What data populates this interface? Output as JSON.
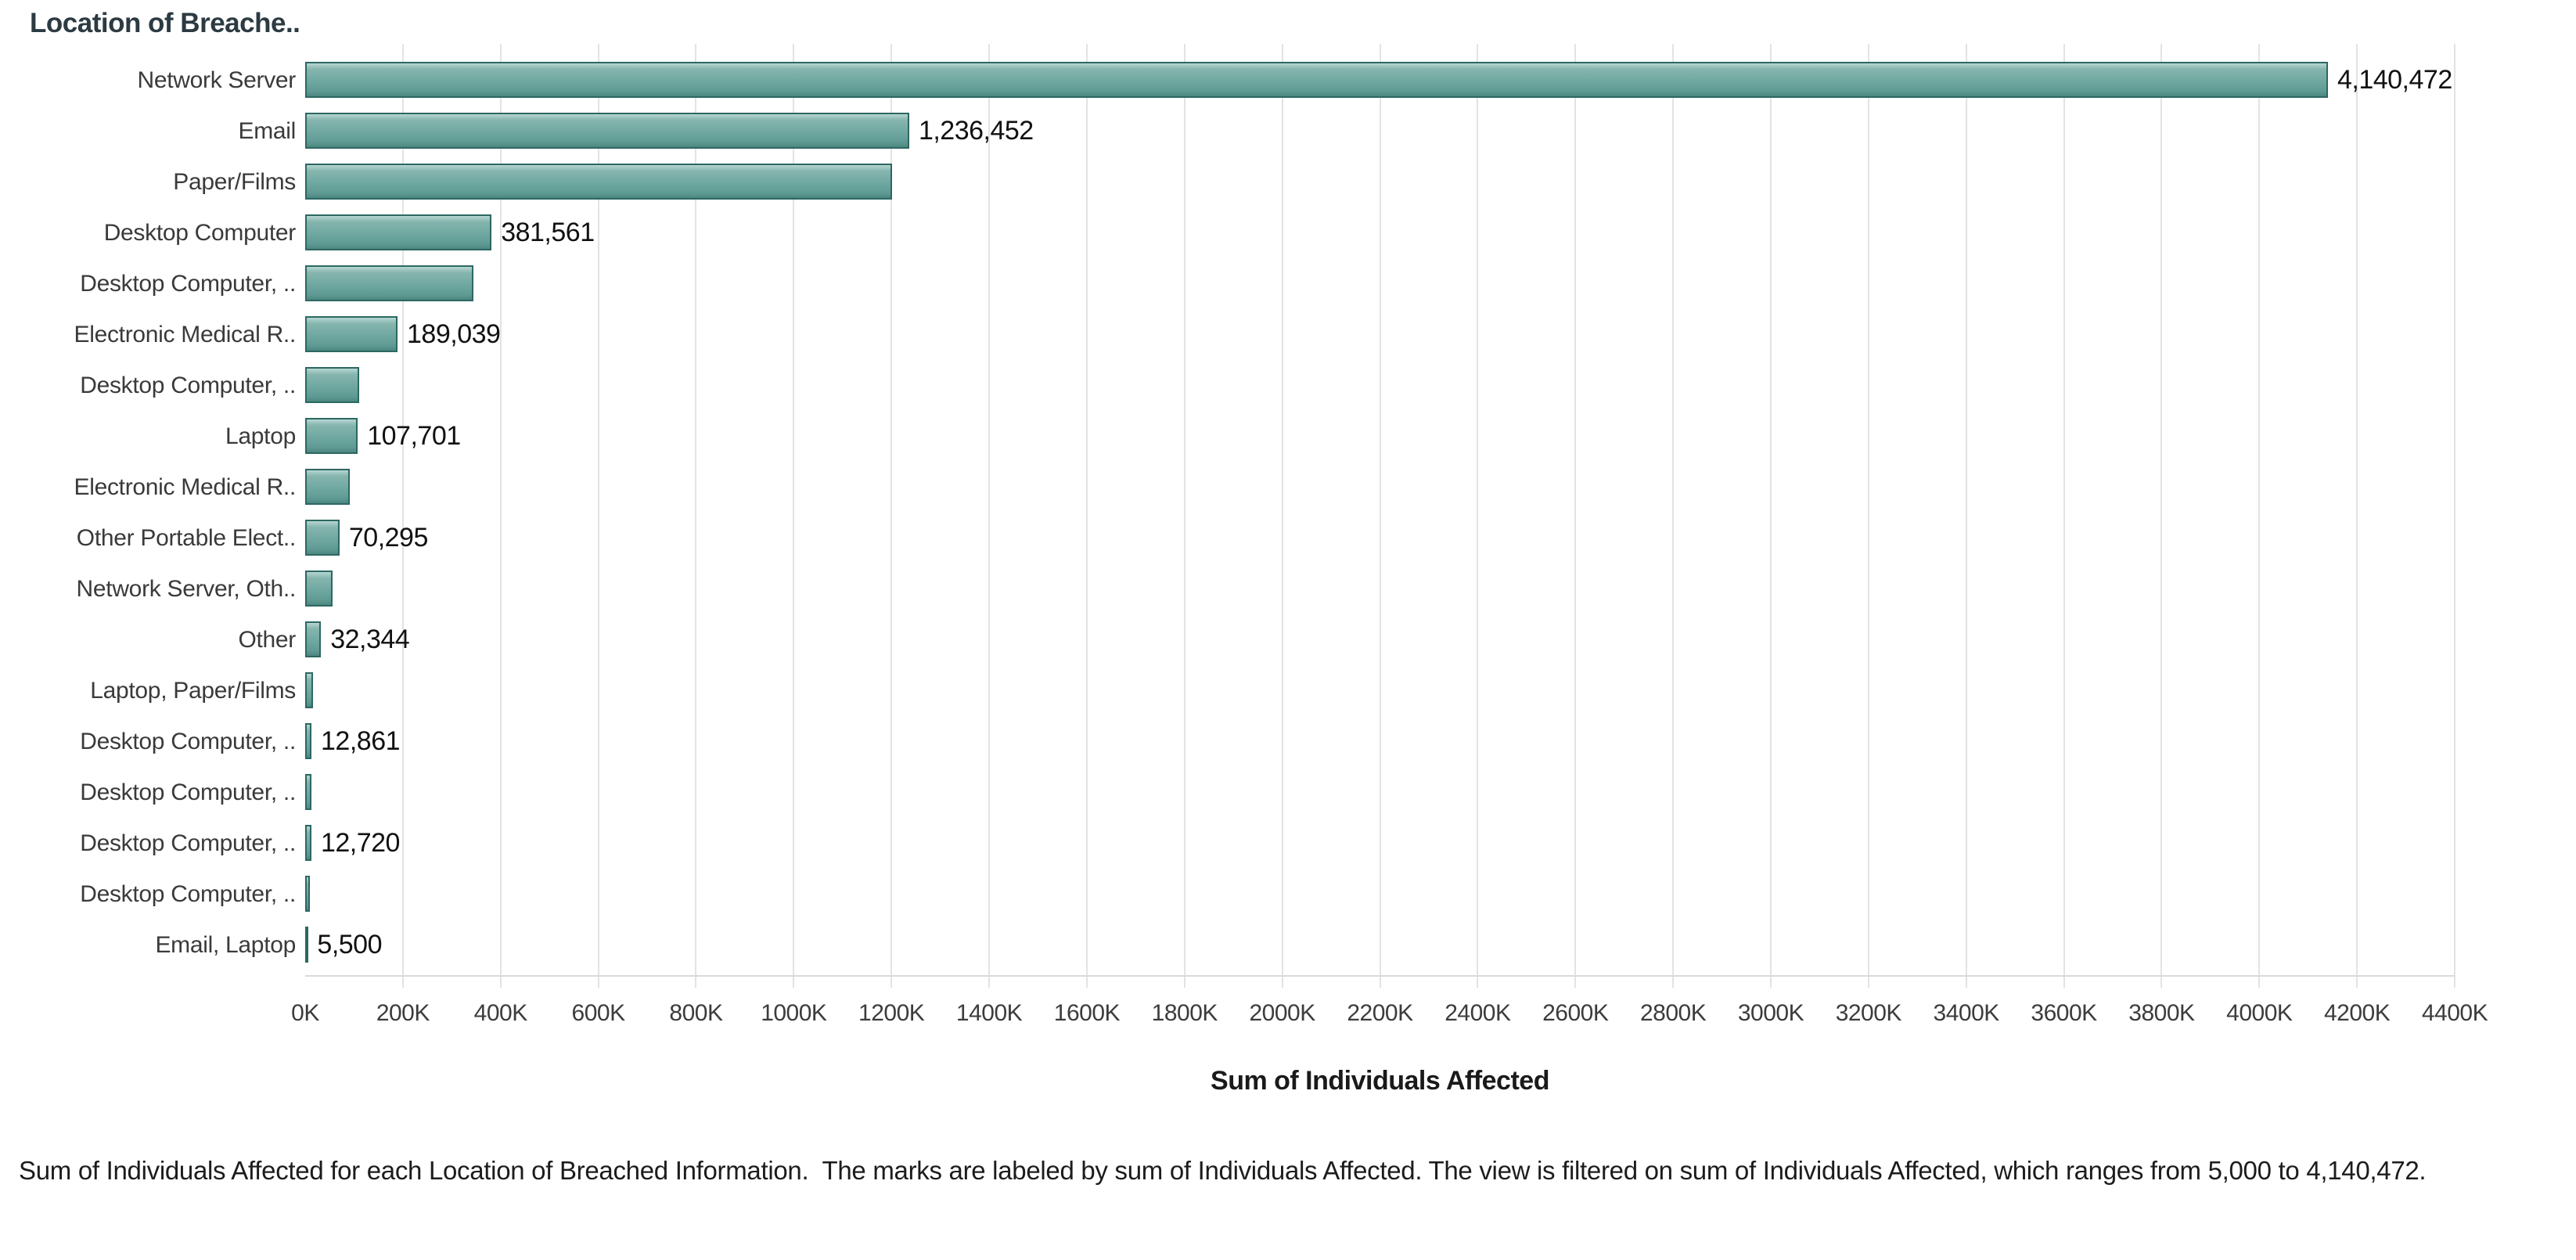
{
  "chart_data": {
    "type": "bar",
    "orientation": "horizontal",
    "column_header": "Location of Breache..",
    "categories": [
      "Network Server",
      "Email",
      "Paper/Films",
      "Desktop Computer",
      "Desktop Computer, ..",
      "Electronic Medical R..",
      "Desktop Computer, ..",
      "Laptop",
      "Electronic Medical R..",
      "Other Portable Elect..",
      "Network Server, Oth..",
      "Other",
      "Laptop, Paper/Films",
      "Desktop Computer, ..",
      "Desktop Computer, ..",
      "Desktop Computer, ..",
      "Desktop Computer, ..",
      "Email, Laptop"
    ],
    "values": [
      4140472,
      1236452,
      1201000,
      381561,
      345000,
      189039,
      110000,
      107701,
      91000,
      70295,
      56000,
      32344,
      16000,
      12861,
      12800,
      12720,
      9000,
      5500
    ],
    "bar_labels": [
      "4,140,472",
      "1,236,452",
      "",
      "381,561",
      "",
      "189,039",
      "",
      "107,701",
      "",
      "70,295",
      "",
      "32,344",
      "",
      "12,861",
      "",
      "12,720",
      "",
      "5,500"
    ],
    "xlabel": "Sum of Individuals Affected",
    "x_ticks": [
      "0K",
      "200K",
      "400K",
      "600K",
      "800K",
      "1000K",
      "1200K",
      "1400K",
      "1600K",
      "1800K",
      "2000K",
      "2200K",
      "2400K",
      "2600K",
      "2800K",
      "3000K",
      "3200K",
      "3400K",
      "3600K",
      "3800K",
      "4000K",
      "4200K",
      "4400K"
    ],
    "xlim": [
      0,
      4400000
    ],
    "tick_step": 200000,
    "grid": "vertical",
    "legend": "none",
    "bar_color": "#6fa8a1",
    "bar_border_color": "#2c6862",
    "gridline_color": "#e3e3e3"
  },
  "caption": {
    "text": "Sum of Individuals Affected for each Location of Breached Information.  The marks are labeled by sum of Individuals Affected. The view is filtered on sum of Individuals Affected, which ranges from 5,000 to 4,140,472."
  }
}
